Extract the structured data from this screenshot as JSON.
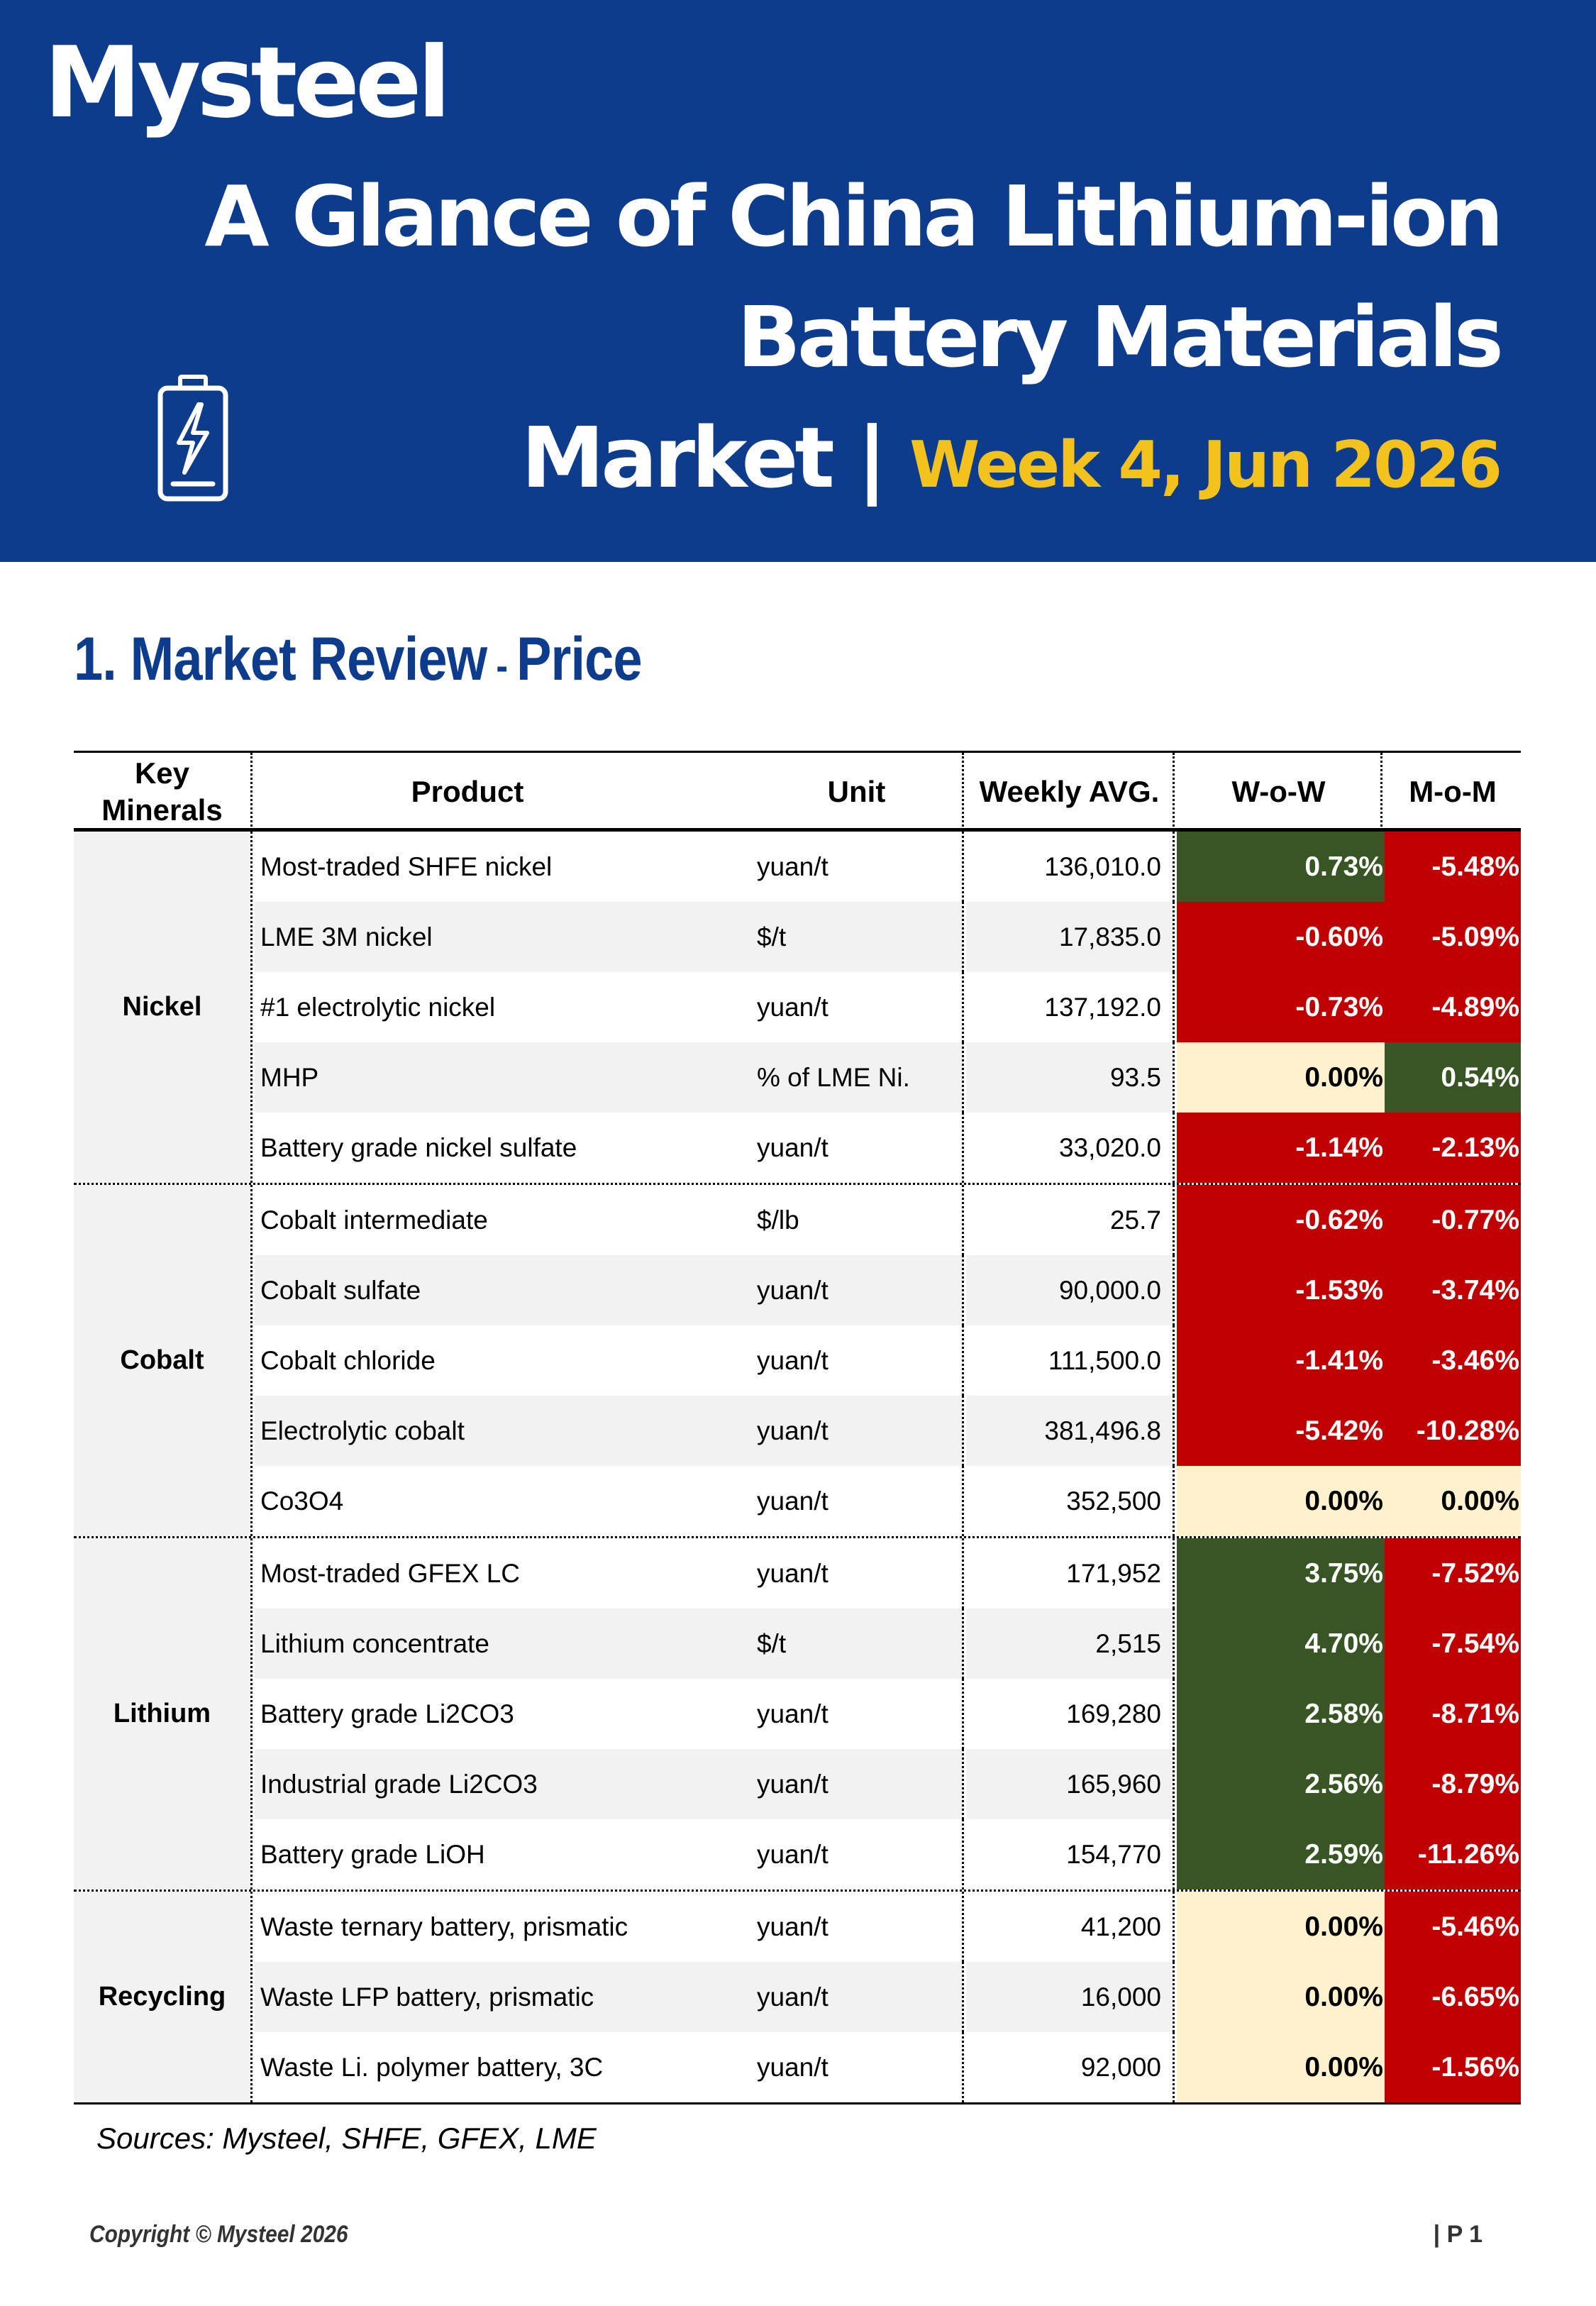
{
  "header": {
    "logo": "Mysteel",
    "title_line1": "A Glance of China Lithium-ion",
    "title_line2": "Battery Materials",
    "title_line3": "Market",
    "title_sep": "|",
    "week": "Week 4, Jun 2026",
    "icon": "battery-charging-icon",
    "bg_color": "#0d3c8c",
    "accent_color": "#f4c21d"
  },
  "section": {
    "number_title": "1. Market Review",
    "dash": " - ",
    "subtitle": "Price"
  },
  "table": {
    "headers": {
      "minerals_line1": "Key",
      "minerals_line2": "Minerals",
      "product": "Product",
      "unit": "Unit",
      "avg": "Weekly AVG.",
      "wow": "W-o-W",
      "mom": "M-o-M"
    },
    "colors": {
      "up": "#375623",
      "down": "#c00000",
      "flat": "#fff2cc"
    },
    "groups": [
      {
        "name": "Nickel",
        "rows": [
          {
            "product": "Most-traded SHFE nickel",
            "unit": "yuan/t",
            "avg": "136,010.0",
            "wow": "0.73%",
            "mom": "-5.48%"
          },
          {
            "product": "LME 3M nickel",
            "unit": "$/t",
            "avg": "17,835.0",
            "wow": "-0.60%",
            "mom": "-5.09%"
          },
          {
            "product": "#1 electrolytic nickel",
            "unit": "yuan/t",
            "avg": "137,192.0",
            "wow": "-0.73%",
            "mom": "-4.89%"
          },
          {
            "product": "MHP",
            "unit": "% of LME Ni.",
            "avg": "93.5",
            "wow": "0.00%",
            "mom": "0.54%"
          },
          {
            "product": "Battery grade nickel sulfate",
            "unit": "yuan/t",
            "avg": "33,020.0",
            "wow": "-1.14%",
            "mom": "-2.13%"
          }
        ]
      },
      {
        "name": "Cobalt",
        "rows": [
          {
            "product": "Cobalt intermediate",
            "unit": "$/lb",
            "avg": "25.7",
            "wow": "-0.62%",
            "mom": "-0.77%"
          },
          {
            "product": "Cobalt sulfate",
            "unit": "yuan/t",
            "avg": "90,000.0",
            "wow": "-1.53%",
            "mom": "-3.74%"
          },
          {
            "product": "Cobalt chloride",
            "unit": "yuan/t",
            "avg": "111,500.0",
            "wow": "-1.41%",
            "mom": "-3.46%"
          },
          {
            "product": "Electrolytic cobalt",
            "unit": "yuan/t",
            "avg": "381,496.8",
            "wow": "-5.42%",
            "mom": "-10.28%"
          },
          {
            "product": "Co3O4",
            "unit": "yuan/t",
            "avg": "352,500",
            "wow": "0.00%",
            "mom": "0.00%"
          }
        ]
      },
      {
        "name": "Lithium",
        "rows": [
          {
            "product": "Most-traded GFEX LC",
            "unit": "yuan/t",
            "avg": "171,952",
            "wow": "3.75%",
            "mom": "-7.52%"
          },
          {
            "product": "Lithium concentrate",
            "unit": "$/t",
            "avg": "2,515",
            "wow": "4.70%",
            "mom": "-7.54%"
          },
          {
            "product": "Battery grade Li2CO3",
            "unit": "yuan/t",
            "avg": "169,280",
            "wow": "2.58%",
            "mom": "-8.71%"
          },
          {
            "product": "Industrial grade Li2CO3",
            "unit": "yuan/t",
            "avg": "165,960",
            "wow": "2.56%",
            "mom": "-8.79%"
          },
          {
            "product": "Battery grade LiOH",
            "unit": "yuan/t",
            "avg": "154,770",
            "wow": "2.59%",
            "mom": "-11.26%"
          }
        ]
      },
      {
        "name": "Recycling",
        "rows": [
          {
            "product": "Waste ternary battery, prismatic",
            "unit": "yuan/t",
            "avg": "41,200",
            "wow": "0.00%",
            "mom": "-5.46%"
          },
          {
            "product": "Waste LFP battery, prismatic",
            "unit": "yuan/t",
            "avg": "16,000",
            "wow": "0.00%",
            "mom": "-6.65%"
          },
          {
            "product": "Waste Li. polymer battery, 3C",
            "unit": "yuan/t",
            "avg": "92,000",
            "wow": "0.00%",
            "mom": "-1.56%"
          }
        ]
      }
    ]
  },
  "sources": "Sources: Mysteel, SHFE, GFEX, LME",
  "footer": {
    "copyright": "Copyright © Mysteel 2026",
    "page": "| P 1"
  }
}
